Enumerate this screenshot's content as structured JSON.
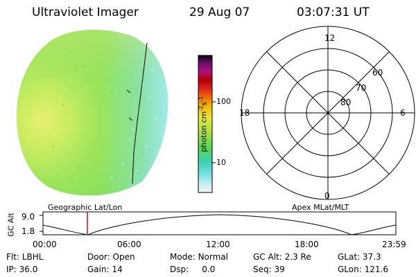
{
  "header": {
    "title": "Ultraviolet Imager",
    "date": "29 Aug 07",
    "time": "03:07:31  UT"
  },
  "colorbar": {
    "unit_label": "photon cm-2s-1",
    "ticks": [
      "100",
      "10"
    ]
  },
  "polar_plot": {
    "mlt_labels": [
      "12",
      "18",
      "6",
      "0"
    ],
    "lat_labels": [
      "60",
      "70",
      "80"
    ]
  },
  "timeline": {
    "left_title": "Geographic Lat/Lon",
    "right_title": "Apex  MLat/MLT",
    "y_axis_label": "GC Alt",
    "y_ticks": [
      "9.0",
      "1.8"
    ],
    "x_ticks": [
      "00:00",
      "06:00",
      "12:00",
      "18:00",
      "23:59"
    ],
    "marker_time": "03:07:31"
  },
  "status": {
    "row1": [
      {
        "label": "Flt:",
        "value": "LBHL"
      },
      {
        "label": "Door:",
        "value": "Open"
      },
      {
        "label": "Mode:",
        "value": "Normal"
      },
      {
        "label": "GC Alt:",
        "value": "2.3 Re"
      },
      {
        "label": "GLat:",
        "value": "37.3"
      }
    ],
    "row2": [
      {
        "label": "IP:",
        "value": "36.0"
      },
      {
        "label": "Gain:",
        "value": "14"
      },
      {
        "label": "Dsp:",
        "value": "0.0"
      },
      {
        "label": "Seq:",
        "value": "39"
      },
      {
        "label": "GLon:",
        "value": "121.6"
      }
    ]
  },
  "colors": {
    "disk_green": "#8fe35a",
    "disk_yellow": "#e6f07a",
    "disk_cyan": "#7fe8e0",
    "marker_red": "#dd0000"
  }
}
